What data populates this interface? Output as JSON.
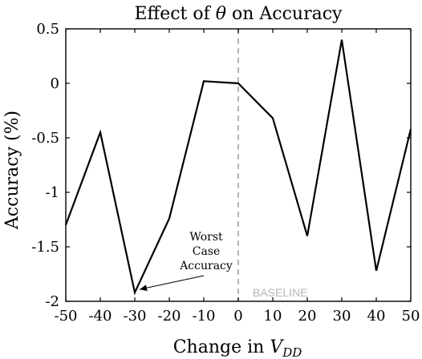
{
  "chart_data": {
    "type": "line",
    "title_prefix": "Effect of ",
    "title_symbol": "θ",
    "title_suffix": " on Accuracy",
    "xlabel_prefix": "Change in ",
    "xlabel_var": "V",
    "xlabel_sub": "DD",
    "ylabel": "Accuracy (%)",
    "xlim": [
      -50,
      50
    ],
    "ylim": [
      -2,
      0.5
    ],
    "xticks": [
      -50,
      -40,
      -30,
      -20,
      -10,
      0,
      10,
      20,
      30,
      40,
      50
    ],
    "xtick_labels": [
      "-50",
      "-40",
      "-30",
      "-20",
      "-10",
      "0",
      "10",
      "20",
      "30",
      "40",
      "50"
    ],
    "yticks": [
      0.5,
      0,
      -0.5,
      -1,
      -1.5,
      -2
    ],
    "ytick_labels": [
      "0.5",
      "0",
      "-0.5",
      "-1",
      "-1.5",
      "-2"
    ],
    "grid": false,
    "series": [
      {
        "x": [
          -50,
          -40,
          -30,
          -20,
          -10,
          0,
          10,
          20,
          30,
          40,
          50
        ],
        "y": [
          -1.3,
          -0.45,
          -1.92,
          -1.24,
          0.02,
          0.0,
          -0.32,
          -1.4,
          0.4,
          -1.72,
          -0.42
        ],
        "color": "#000000"
      }
    ],
    "baseline": {
      "x": 0,
      "label": "BASELINE",
      "color": "#b5b5b5"
    },
    "annotation": {
      "lines": [
        "Worst",
        "Case",
        "Accuracy"
      ],
      "target_x": -30,
      "target_y": -1.92
    }
  }
}
